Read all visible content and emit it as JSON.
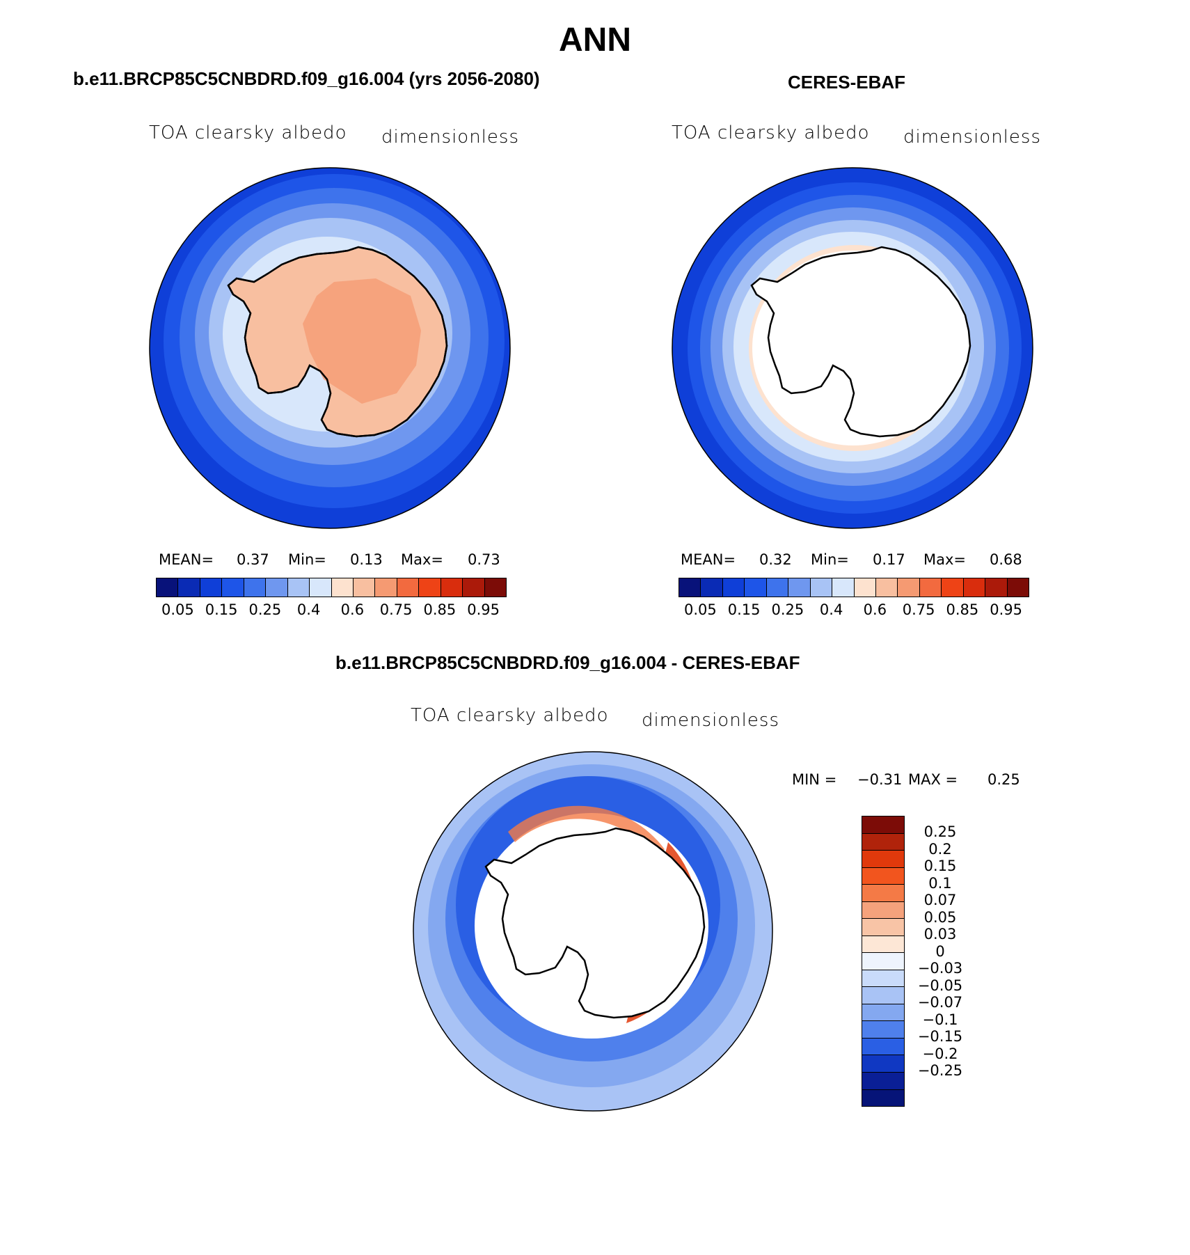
{
  "title": "ANN",
  "panels": [
    {
      "id": "model",
      "title": "b.e11.BRCP85C5CNBDRD.f09_g16.004 (yrs 2056-2080)",
      "variable": "TOA clearsky albedo",
      "units": "dimensionless",
      "stats": {
        "mean_label": "MEAN=",
        "mean": "0.37",
        "min_label": "Min=",
        "min": "0.13",
        "max_label": "Max=",
        "max": "0.73"
      }
    },
    {
      "id": "obs",
      "title": "CERES-EBAF",
      "variable": "TOA clearsky albedo",
      "units": "dimensionless",
      "stats": {
        "mean_label": "MEAN=",
        "mean": "0.32",
        "min_label": "Min=",
        "min": "0.17",
        "max_label": "Max=",
        "max": "0.68"
      }
    }
  ],
  "colorbar": {
    "colors": [
      "#08127a",
      "#0a2bb5",
      "#0f3fd8",
      "#1e55e8",
      "#3e73ec",
      "#6f97ef",
      "#a8c3f5",
      "#d8e7fb",
      "#fde2cf",
      "#f8bfa0",
      "#f59a72",
      "#f26a3f",
      "#ee4316",
      "#d92d0d",
      "#ab1a0a",
      "#7c0c07"
    ],
    "labels": [
      "0.05",
      "0.15",
      "0.25",
      "0.4",
      "0.6",
      "0.75",
      "0.85",
      "0.95"
    ]
  },
  "diff": {
    "title": "b.e11.BRCP85C5CNBDRD.f09_g16.004 - CERES-EBAF",
    "variable": "TOA clearsky albedo",
    "units": "dimensionless",
    "minmax": {
      "min_label": "MIN =",
      "min": "−0.31",
      "max_label": "MAX =",
      "max": "0.25"
    },
    "colorbar": {
      "colors": [
        "#7c0c07",
        "#b0230b",
        "#e0390c",
        "#f2551e",
        "#f47a46",
        "#f5a27c",
        "#f8c4a6",
        "#fde7d6",
        "#eef4fd",
        "#c9dbfa",
        "#a9c3f5",
        "#84a8f0",
        "#4f80ec",
        "#2a5fe4",
        "#1038c2",
        "#0a1f96",
        "#061478"
      ],
      "labels": [
        "0.25",
        "0.2",
        "0.15",
        "0.1",
        "0.07",
        "0.05",
        "0.03",
        "0",
        "−0.03",
        "−0.05",
        "−0.07",
        "−0.1",
        "−0.15",
        "−0.2",
        "−0.25"
      ]
    }
  }
}
